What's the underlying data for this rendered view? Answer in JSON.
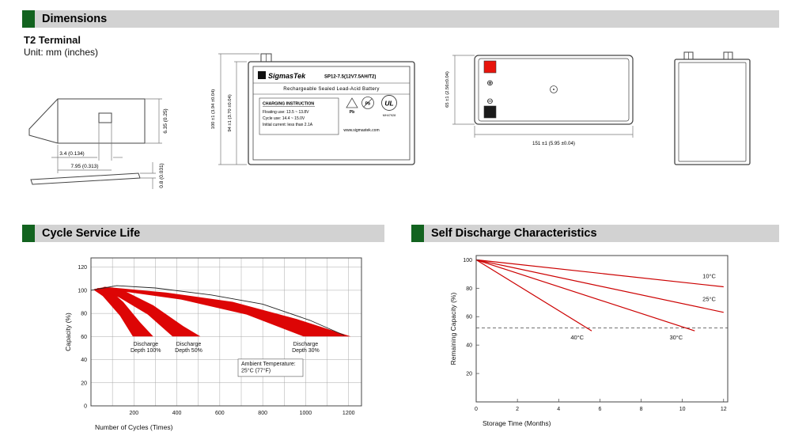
{
  "colors": {
    "header_bg": "#d2d2d2",
    "header_accent": "#12631f",
    "band_red": "#dd0505",
    "line_red": "#cc0000",
    "terminal_red": "#e8140c",
    "terminal_black": "#1a1a1a"
  },
  "headers": {
    "dimensions": "Dimensions",
    "cycle_service_life": "Cycle Service Life",
    "self_discharge": "Self Discharge Characteristics"
  },
  "dimensions_section": {
    "terminal_title": "T2 Terminal",
    "unit_label": "Unit: mm (inches)",
    "terminal_detail": {
      "dim_hole": "3.4 (0.134)",
      "dim_width": "7.95 (0.313)",
      "dim_height": "6.35 (0.25)",
      "dim_thickness": "0.8 (0.031)"
    },
    "front_view": {
      "brand": "SigmasTek",
      "model": "SP12-7.5(12V7.5AH/T2)",
      "type_line": "Rechargeable Sealed Lead-Acid Battery",
      "charging_title": "CHARGING INSTRUCTION",
      "charging_line1": "Floating use: 13.5 ~ 13.8V",
      "charging_line2": "Cycle use: 14.4 ~ 15.0V",
      "charging_line3": "Initial current: less than 2.1A",
      "pb_label": "Pb",
      "ul_label": "UL",
      "ul_code": "MH47928",
      "website": "www.sigmastek.com",
      "dim_total_height": "100 ±1 (3.94 ±0.04)",
      "dim_body_height": "94 ±1 (3.70 ±0.04)"
    },
    "top_view": {
      "plus_symbol": "⊕",
      "minus_symbol": "⊖",
      "dim_width": "65 ±1 (2.56±0.04)",
      "dim_length": "151 ±1 (5.95 ±0.04)"
    }
  },
  "chart_data": [
    {
      "type": "area",
      "title": "Cycle Service Life",
      "xlabel": "Number of Cycles (Times)",
      "ylabel": "Capacity (%)",
      "xlim": [
        0,
        1260
      ],
      "ylim": [
        0,
        128
      ],
      "xticks": [
        200,
        400,
        600,
        800,
        1000,
        1200
      ],
      "yticks": [
        0,
        20,
        40,
        60,
        80,
        100,
        120
      ],
      "xgrid_step": 100,
      "ygrid_step": 20,
      "grid": true,
      "envelope": [
        [
          0,
          100
        ],
        [
          120,
          104
        ],
        [
          300,
          102
        ],
        [
          560,
          96
        ],
        [
          800,
          88
        ],
        [
          1020,
          74
        ],
        [
          1180,
          61
        ]
      ],
      "bands": [
        {
          "name": "Discharge Depth 100%",
          "points": [
            [
              15,
              101
            ],
            [
              70,
              103
            ],
            [
              150,
              90
            ],
            [
              230,
              72
            ],
            [
              290,
              60
            ],
            [
              195,
              60
            ],
            [
              135,
              78
            ],
            [
              55,
              95
            ],
            [
              15,
              100
            ]
          ]
        },
        {
          "name": "Discharge Depth 50%",
          "points": [
            [
              30,
              102
            ],
            [
              150,
              100
            ],
            [
              290,
              87
            ],
            [
              430,
              69
            ],
            [
              510,
              60
            ],
            [
              380,
              60
            ],
            [
              265,
              79
            ],
            [
              130,
              94
            ],
            [
              30,
              101
            ]
          ]
        },
        {
          "name": "Discharge Depth 30%",
          "points": [
            [
              60,
              103
            ],
            [
              350,
              98
            ],
            [
              660,
              90
            ],
            [
              960,
              75
            ],
            [
              1210,
              60
            ],
            [
              990,
              60
            ],
            [
              725,
              79
            ],
            [
              420,
              92
            ],
            [
              150,
              99
            ],
            [
              60,
              101
            ]
          ]
        }
      ],
      "annotations": [
        {
          "lines": [
            "Discharge",
            "Depth 100%"
          ],
          "x": 255,
          "y": 52
        },
        {
          "lines": [
            "Discharge",
            "Depth 50%"
          ],
          "x": 455,
          "y": 52
        },
        {
          "lines": [
            "Discharge",
            "Depth 30%"
          ],
          "x": 1000,
          "y": 52
        },
        {
          "lines": [
            "Ambient Temperature:",
            "25°C (77°F)"
          ],
          "x": 700,
          "y": 35,
          "box": true
        }
      ]
    },
    {
      "type": "line",
      "title": "Self Discharge Characteristics",
      "xlabel": "Storage Time (Months)",
      "ylabel": "Remaining Capacity (%)",
      "xlim": [
        0,
        12.2
      ],
      "ylim": [
        0,
        103
      ],
      "xticks": [
        0,
        2,
        4,
        6,
        8,
        10,
        12
      ],
      "yticks": [
        0,
        20,
        40,
        60,
        80,
        100
      ],
      "grid": false,
      "dashed_line_y": 52,
      "series": [
        {
          "name": "10°C",
          "points": [
            [
              0,
              100
            ],
            [
              12,
              81
            ]
          ],
          "label_x": 11.3,
          "label_y": 87
        },
        {
          "name": "25°C",
          "points": [
            [
              0,
              100
            ],
            [
              12,
              63
            ]
          ],
          "label_x": 11.3,
          "label_y": 71
        },
        {
          "name": "30°C",
          "points": [
            [
              0,
              100
            ],
            [
              10.6,
              50
            ]
          ],
          "label_x": 9.7,
          "label_y": 44
        },
        {
          "name": "40°C",
          "points": [
            [
              0,
              100
            ],
            [
              5.6,
              50
            ]
          ],
          "label_x": 4.9,
          "label_y": 44
        }
      ]
    }
  ]
}
